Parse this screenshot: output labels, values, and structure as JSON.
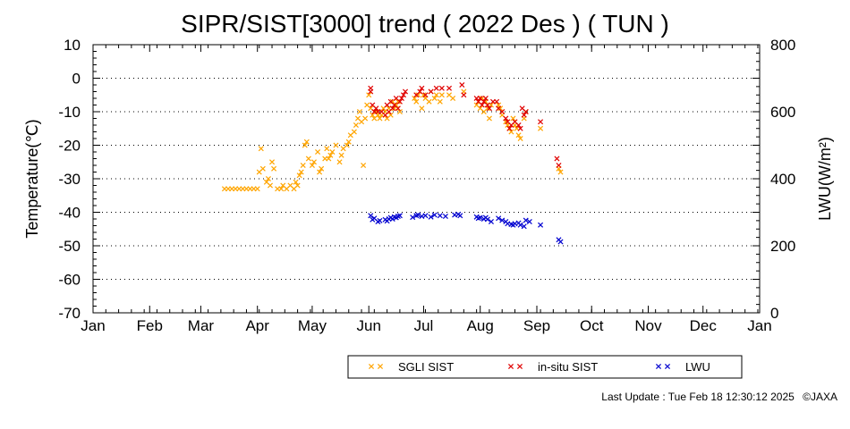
{
  "footer": {
    "last_update": "Last Update : Tue Feb 18 12:30:12 2025",
    "credit": "©JAXA"
  },
  "chart_data": {
    "type": "scatter",
    "title": "SIPR/SIST[3000] trend ( 2022 Des ) ( TUN )",
    "ylabel": "Temperature(℃)",
    "y2label": "LWU(W/m²)",
    "x_tick_labels": [
      "Jan",
      "Feb",
      "Mar",
      "Apr",
      "May",
      "Jun",
      "Jul",
      "Aug",
      "Sep",
      "Oct",
      "Nov",
      "Dec",
      "Jan"
    ],
    "x_range_days": [
      0,
      365
    ],
    "ylim": [
      -70,
      10
    ],
    "y_ticks": [
      10,
      0,
      -10,
      -20,
      -30,
      -40,
      -50,
      -60,
      -70
    ],
    "y2lim": [
      0,
      800
    ],
    "y2_ticks": [
      0,
      200,
      400,
      600,
      800
    ],
    "grid": "horizontal dotted",
    "legend_position": "bottom",
    "marker": "×",
    "series": [
      {
        "name": "SGLI SIST",
        "color": "#ffa500",
        "axis": "left",
        "points": [
          [
            72,
            -33
          ],
          [
            74,
            -33
          ],
          [
            76,
            -33
          ],
          [
            78,
            -33
          ],
          [
            80,
            -33
          ],
          [
            82,
            -33
          ],
          [
            84,
            -33
          ],
          [
            86,
            -33
          ],
          [
            88,
            -33
          ],
          [
            90,
            -33
          ],
          [
            91,
            -28
          ],
          [
            92,
            -21
          ],
          [
            93,
            -27
          ],
          [
            95,
            -31
          ],
          [
            96,
            -30
          ],
          [
            97,
            -32
          ],
          [
            98,
            -25
          ],
          [
            99,
            -27
          ],
          [
            101,
            -33
          ],
          [
            103,
            -33
          ],
          [
            104,
            -32
          ],
          [
            106,
            -33
          ],
          [
            108,
            -32
          ],
          [
            110,
            -33
          ],
          [
            111,
            -31
          ],
          [
            112,
            -32
          ],
          [
            113,
            -29
          ],
          [
            114,
            -28
          ],
          [
            115,
            -26
          ],
          [
            116,
            -20
          ],
          [
            117,
            -19
          ],
          [
            118,
            -24
          ],
          [
            120,
            -26
          ],
          [
            121,
            -25
          ],
          [
            123,
            -22
          ],
          [
            124,
            -28
          ],
          [
            125,
            -27
          ],
          [
            127,
            -24
          ],
          [
            128,
            -21
          ],
          [
            129,
            -24
          ],
          [
            130,
            -23
          ],
          [
            131,
            -22
          ],
          [
            133,
            -20
          ],
          [
            135,
            -25
          ],
          [
            136,
            -23
          ],
          [
            137,
            -21
          ],
          [
            139,
            -20
          ],
          [
            140,
            -19
          ],
          [
            141,
            -17
          ],
          [
            143,
            -16
          ],
          [
            144,
            -14
          ],
          [
            145,
            -12
          ],
          [
            146,
            -10
          ],
          [
            147,
            -13
          ],
          [
            148,
            -26
          ],
          [
            149,
            -12
          ],
          [
            150,
            -8
          ],
          [
            151,
            -5
          ],
          [
            152,
            -9
          ],
          [
            153,
            -11
          ],
          [
            154,
            -12
          ],
          [
            155,
            -10
          ],
          [
            156,
            -11
          ],
          [
            157,
            -12
          ],
          [
            158,
            -11
          ],
          [
            159,
            -9
          ],
          [
            160,
            -10
          ],
          [
            161,
            -12
          ],
          [
            162,
            -9
          ],
          [
            163,
            -11
          ],
          [
            164,
            -7
          ],
          [
            165,
            -9
          ],
          [
            166,
            -8
          ],
          [
            167,
            -7
          ],
          [
            168,
            -10
          ],
          [
            176,
            -6
          ],
          [
            177,
            -7
          ],
          [
            178,
            -5
          ],
          [
            180,
            -9
          ],
          [
            181,
            -5
          ],
          [
            182,
            -6
          ],
          [
            184,
            -7
          ],
          [
            185,
            -4
          ],
          [
            187,
            -6
          ],
          [
            188,
            -5
          ],
          [
            190,
            -7
          ],
          [
            191,
            -5
          ],
          [
            195,
            -5
          ],
          [
            197,
            -6
          ],
          [
            203,
            -4
          ],
          [
            210,
            -8
          ],
          [
            211,
            -7
          ],
          [
            212,
            -9
          ],
          [
            213,
            -6
          ],
          [
            214,
            -10
          ],
          [
            215,
            -7
          ],
          [
            216,
            -9
          ],
          [
            217,
            -12
          ],
          [
            218,
            -8
          ],
          [
            222,
            -8
          ],
          [
            223,
            -9
          ],
          [
            224,
            -11
          ],
          [
            226,
            -13
          ],
          [
            227,
            -14
          ],
          [
            228,
            -15
          ],
          [
            229,
            -16
          ],
          [
            230,
            -12
          ],
          [
            231,
            -14
          ],
          [
            232,
            -15
          ],
          [
            233,
            -17
          ],
          [
            234,
            -18
          ],
          [
            236,
            -12
          ],
          [
            237,
            -10
          ],
          [
            245,
            -15
          ],
          [
            255,
            -27
          ],
          [
            256,
            -28
          ]
        ]
      },
      {
        "name": "in-situ SIST",
        "color": "#e00000",
        "axis": "left",
        "points": [
          [
            152,
            -4
          ],
          [
            152,
            -3
          ],
          [
            153,
            -8
          ],
          [
            154,
            -10
          ],
          [
            155,
            -9
          ],
          [
            156,
            -10
          ],
          [
            158,
            -10
          ],
          [
            160,
            -11
          ],
          [
            161,
            -8
          ],
          [
            162,
            -10
          ],
          [
            163,
            -7
          ],
          [
            164,
            -9
          ],
          [
            165,
            -8
          ],
          [
            166,
            -6
          ],
          [
            167,
            -9
          ],
          [
            168,
            -7
          ],
          [
            169,
            -6
          ],
          [
            170,
            -5
          ],
          [
            171,
            -4
          ],
          [
            177,
            -5
          ],
          [
            179,
            -4
          ],
          [
            180,
            -3
          ],
          [
            182,
            -5
          ],
          [
            185,
            -4
          ],
          [
            188,
            -3
          ],
          [
            191,
            -3
          ],
          [
            195,
            -3
          ],
          [
            202,
            -2
          ],
          [
            203,
            -5
          ],
          [
            210,
            -6
          ],
          [
            211,
            -7
          ],
          [
            212,
            -6
          ],
          [
            213,
            -8
          ],
          [
            214,
            -7
          ],
          [
            215,
            -6
          ],
          [
            216,
            -8
          ],
          [
            217,
            -9
          ],
          [
            219,
            -7
          ],
          [
            221,
            -7
          ],
          [
            222,
            -9
          ],
          [
            224,
            -10
          ],
          [
            226,
            -12
          ],
          [
            227,
            -13
          ],
          [
            228,
            -15
          ],
          [
            229,
            -14
          ],
          [
            231,
            -13
          ],
          [
            233,
            -14
          ],
          [
            234,
            -15
          ],
          [
            235,
            -9
          ],
          [
            236,
            -11
          ],
          [
            237,
            -10
          ],
          [
            245,
            -13
          ],
          [
            254,
            -24
          ],
          [
            255,
            -26
          ]
        ]
      },
      {
        "name": "LWU",
        "color": "#0000d0",
        "axis": "right",
        "points": [
          [
            152,
            290
          ],
          [
            153,
            278
          ],
          [
            154,
            282
          ],
          [
            156,
            272
          ],
          [
            157,
            275
          ],
          [
            160,
            278
          ],
          [
            161,
            274
          ],
          [
            162,
            280
          ],
          [
            163,
            284
          ],
          [
            164,
            280
          ],
          [
            165,
            286
          ],
          [
            166,
            284
          ],
          [
            167,
            288
          ],
          [
            168,
            290
          ],
          [
            175,
            285
          ],
          [
            177,
            290
          ],
          [
            178,
            292
          ],
          [
            180,
            288
          ],
          [
            182,
            290
          ],
          [
            185,
            286
          ],
          [
            187,
            292
          ],
          [
            190,
            290
          ],
          [
            193,
            288
          ],
          [
            198,
            292
          ],
          [
            200,
            294
          ],
          [
            201,
            290
          ],
          [
            210,
            286
          ],
          [
            211,
            282
          ],
          [
            212,
            284
          ],
          [
            214,
            280
          ],
          [
            215,
            284
          ],
          [
            216,
            279
          ],
          [
            218,
            272
          ],
          [
            222,
            282
          ],
          [
            224,
            276
          ],
          [
            226,
            272
          ],
          [
            227,
            266
          ],
          [
            229,
            264
          ],
          [
            230,
            262
          ],
          [
            231,
            266
          ],
          [
            233,
            268
          ],
          [
            234,
            262
          ],
          [
            236,
            258
          ],
          [
            237,
            276
          ],
          [
            239,
            272
          ],
          [
            245,
            262
          ],
          [
            255,
            218
          ],
          [
            256,
            212
          ]
        ]
      }
    ]
  }
}
